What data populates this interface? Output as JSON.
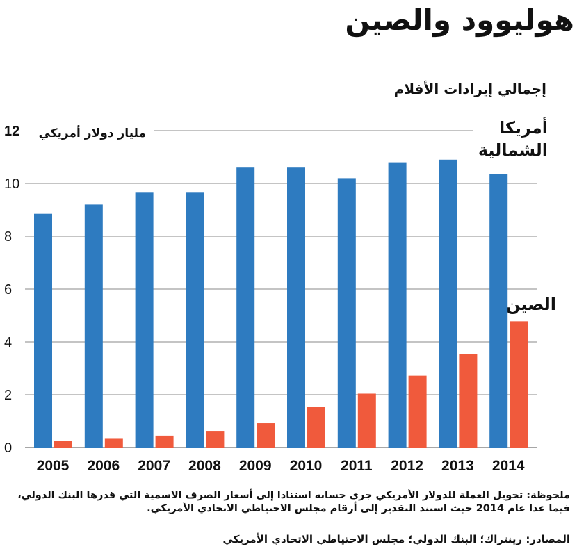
{
  "title": "هوليوود والصين",
  "subtitle": "إجمالي إيرادات الأفلام",
  "unit_label": "مليار دولار أمريكي",
  "label_north_america": "أمريكا الشمالية",
  "label_china": "الصين",
  "note": "ملحوظة: تحويل العملة للدولار الأمريكي جرى حسابه استنادا إلى أسعار الصرف الاسمية التي قدرها البنك الدولي، فيما عدا عام 2014 حيث استند التقدير إلى أرقام مجلس الاحتياطي الاتحادي الأمريكي.",
  "sources": "المصادر: رينتراك؛ البنك الدولي؛ مجلس الاحتياطي الاتحادي الأمريكي",
  "colors": {
    "north_america": "#2e7bc0",
    "china": "#f05a3c",
    "grid": "#888888"
  },
  "chart_data": {
    "type": "bar",
    "title": "إجمالي إيرادات الأفلام",
    "ylabel": "مليار دولار أمريكي",
    "xlabel": "",
    "ylim": [
      0,
      12
    ],
    "yticks": [
      0,
      2,
      4,
      6,
      8,
      10,
      12
    ],
    "categories": [
      "2005",
      "2006",
      "2007",
      "2008",
      "2009",
      "2010",
      "2011",
      "2012",
      "2013",
      "2014"
    ],
    "series": [
      {
        "name": "أمريكا الشمالية",
        "values": [
          8.85,
          9.2,
          9.65,
          9.65,
          10.6,
          10.6,
          10.2,
          10.8,
          10.9,
          10.35
        ]
      },
      {
        "name": "الصين",
        "values": [
          0.26,
          0.33,
          0.45,
          0.63,
          0.92,
          1.53,
          2.04,
          2.72,
          3.53,
          4.78
        ]
      }
    ],
    "legend": "direct labels on right"
  }
}
